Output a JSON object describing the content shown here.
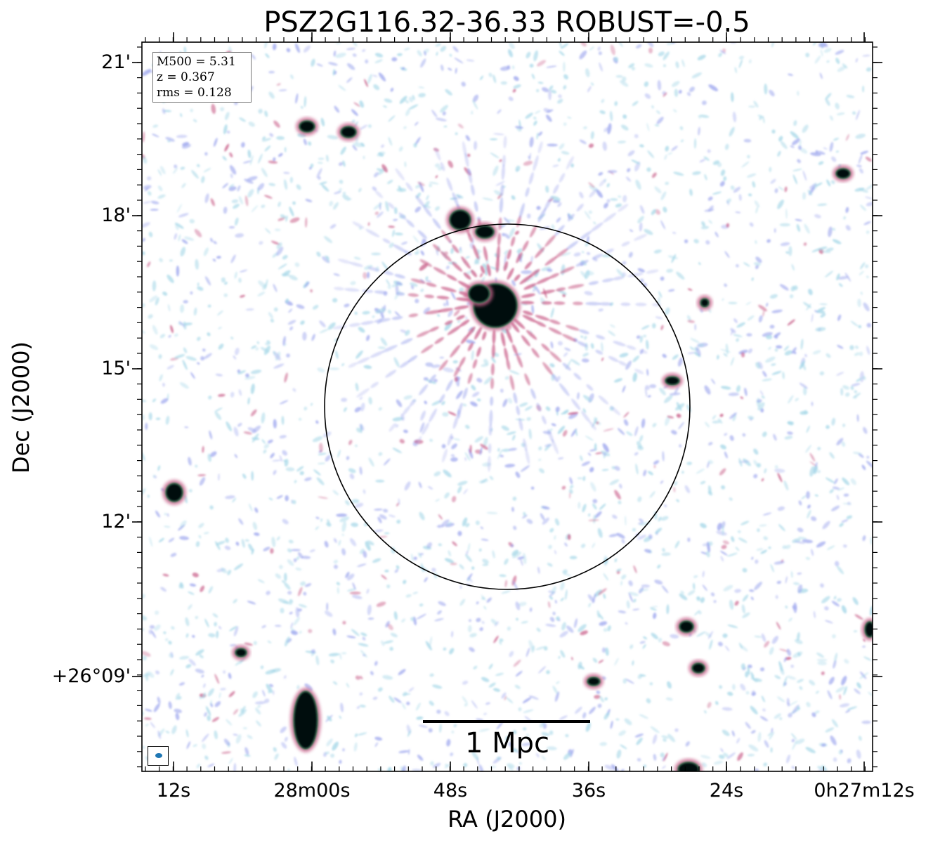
{
  "title": "PSZ2G116.32-36.33 ROBUST=-0.5",
  "axes": {
    "xlabel": "RA (J2000)",
    "ylabel": "Dec (J2000)",
    "x_ticks": [
      "12s",
      "28m00s",
      "48s",
      "36s",
      "24s",
      "0h27m12s"
    ],
    "y_ticks": [
      "21'",
      "18'",
      "15'",
      "12'",
      "+26°09'"
    ]
  },
  "info": {
    "m500": "M500 = 5.31",
    "z": "z = 0.367",
    "rms": "rms = 0.128"
  },
  "scale_bar": {
    "label": "1 Mpc"
  },
  "colors": {
    "noise_light": "#a8d8e8",
    "noise_blue": "#9fa8ee",
    "emission_magenta": "#c9608a",
    "source_core": "#001010",
    "beam": "#1f77b4"
  }
}
